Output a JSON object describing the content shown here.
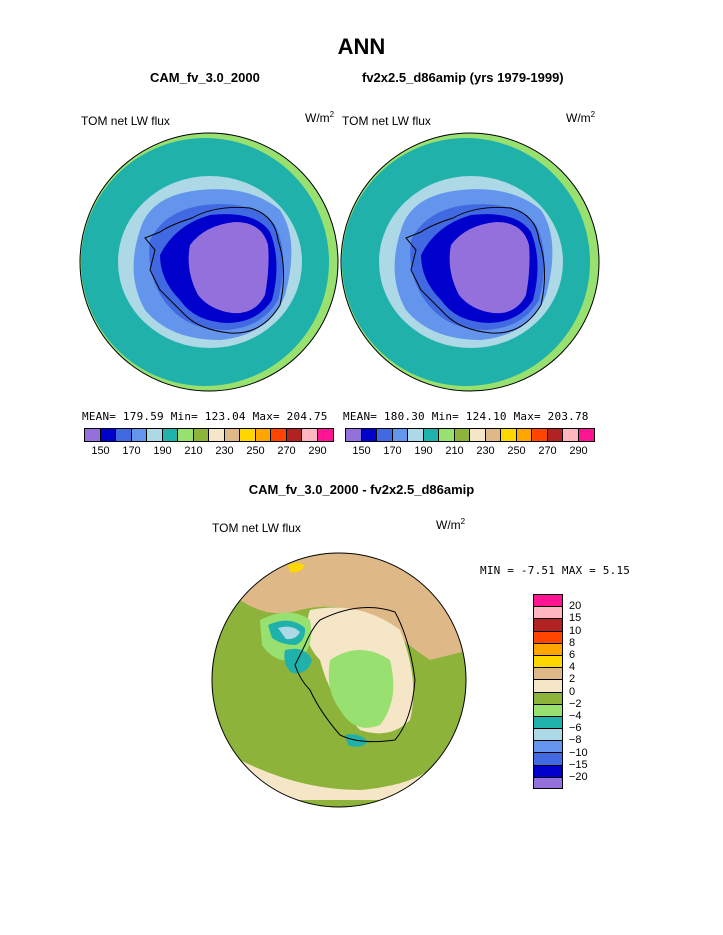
{
  "header": {
    "title": "ANN",
    "left_subtitle": "CAM_fv_3.0_2000",
    "right_subtitle": "fv2x2.5_d86amip (yrs 1979-1999)",
    "diff_title": "CAM_fv_3.0_2000 - fv2x2.5_d86amip"
  },
  "panels": {
    "left": {
      "variable": "TOM net LW flux",
      "unit": "W/m",
      "unit_exp": "2",
      "stats": "MEAN= 179.59  Min= 123.04  Max= 204.75"
    },
    "right": {
      "variable": "TOM net LW flux",
      "unit": "W/m",
      "unit_exp": "2",
      "stats": "MEAN= 180.30  Min= 124.10  Max= 203.78"
    },
    "diff": {
      "variable": "TOM net LW flux",
      "unit": "W/m",
      "unit_exp": "2",
      "stats": "MIN =  -7.51 MAX =   5.15"
    }
  },
  "chart_data": [
    {
      "type": "heatmap",
      "projection": "south polar stereographic",
      "title": "CAM_fv_3.0_2000",
      "variable": "TOM net LW flux",
      "stats": {
        "mean": 179.59,
        "min": 123.04,
        "max": 204.75
      },
      "colorbar_levels": [
        150,
        160,
        170,
        180,
        190,
        200,
        210,
        220,
        230,
        240,
        250,
        260,
        270,
        280,
        290
      ],
      "colorbar_tick_labels": [
        "150",
        "170",
        "190",
        "210",
        "230",
        "250",
        "270",
        "290"
      ],
      "colorbar_colors": [
        "#9370DB",
        "#0000CD",
        "#4169E1",
        "#6495ED",
        "#ADD8E6",
        "#20B2AA",
        "#98E070",
        "#8DB33A",
        "#F5E6C8",
        "#DEB887",
        "#FFD700",
        "#FFA500",
        "#FF4500",
        "#B22222",
        "#FFB6C1",
        "#FF1493"
      ]
    },
    {
      "type": "heatmap",
      "projection": "south polar stereographic",
      "title": "fv2x2.5_d86amip (yrs 1979-1999)",
      "variable": "TOM net LW flux",
      "stats": {
        "mean": 180.3,
        "min": 124.1,
        "max": 203.78
      },
      "colorbar_levels": [
        150,
        160,
        170,
        180,
        190,
        200,
        210,
        220,
        230,
        240,
        250,
        260,
        270,
        280,
        290
      ],
      "colorbar_tick_labels": [
        "150",
        "170",
        "190",
        "210",
        "230",
        "250",
        "270",
        "290"
      ]
    },
    {
      "type": "heatmap",
      "projection": "south polar stereographic",
      "title": "CAM_fv_3.0_2000 - fv2x2.5_d86amip",
      "variable": "TOM net LW flux",
      "stats": {
        "min": -7.51,
        "max": 5.15
      },
      "colorbar_levels": [
        20,
        15,
        10,
        8,
        6,
        4,
        2,
        0,
        -2,
        -4,
        -6,
        -8,
        -10,
        -15,
        -20
      ],
      "colorbar_tick_labels": [
        "20",
        "15",
        "10",
        "8",
        "6",
        "4",
        "2",
        "0",
        "−2",
        "−4",
        "−6",
        "−8",
        "−10",
        "−15",
        "−20"
      ],
      "colorbar_colors": [
        "#FF1493",
        "#FFB6C1",
        "#B22222",
        "#FF4500",
        "#FFA500",
        "#FFD700",
        "#DEB887",
        "#F5E6C8",
        "#8DB33A",
        "#98E070",
        "#20B2AA",
        "#ADD8E6",
        "#6495ED",
        "#4169E1",
        "#0000CD",
        "#9370DB"
      ]
    }
  ]
}
